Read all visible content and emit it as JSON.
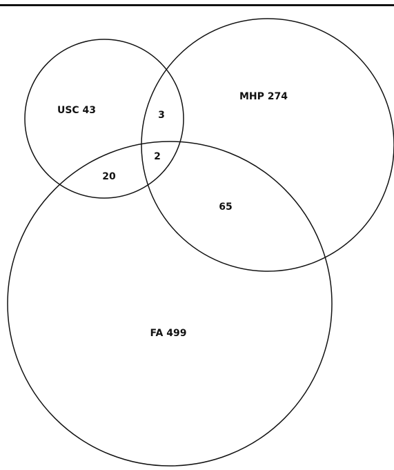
{
  "sets": [
    "USC 43",
    "MHP 274",
    "FA 499"
  ],
  "regions": [
    3,
    2,
    20,
    65
  ]
}
